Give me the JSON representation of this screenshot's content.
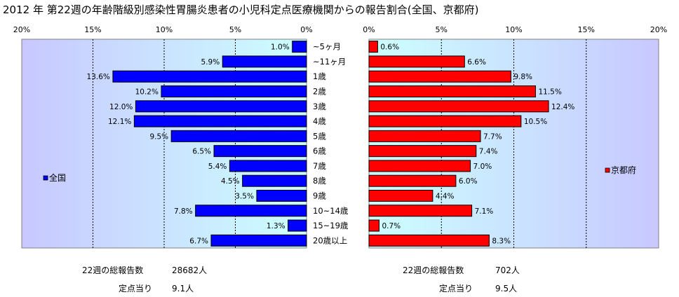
{
  "title": "2012 年 第22週の年齢階級別感染性胃腸炎患者の小児科定点医療機関からの報告割合(全国、京都府)",
  "chart_data": {
    "type": "bar",
    "orientation": "horizontal",
    "layout": "back-to-back",
    "categories": [
      "~5ヶ月",
      "~11ヶ月",
      "1歳",
      "2歳",
      "3歳",
      "4歳",
      "5歳",
      "6歳",
      "7歳",
      "8歳",
      "9歳",
      "10~14歳",
      "15~19歳",
      "20歳以上"
    ],
    "xlim": [
      0,
      20
    ],
    "ticks": [
      "20%",
      "15%",
      "10%",
      "5%",
      "0%",
      "0%",
      "5%",
      "10%",
      "15%",
      "20%"
    ],
    "grid": true,
    "series": [
      {
        "name": "全国",
        "side": "left",
        "color": "#0000ff",
        "values": [
          1.0,
          5.9,
          13.6,
          10.2,
          12.0,
          12.1,
          9.5,
          6.5,
          5.4,
          4.5,
          3.5,
          7.8,
          1.3,
          6.7
        ],
        "labels": [
          "1.0%",
          "5.9%",
          "13.6%",
          "10.2%",
          "12.0%",
          "12.1%",
          "9.5%",
          "6.5%",
          "5.4%",
          "4.5%",
          "3.5%",
          "7.8%",
          "1.3%",
          "6.7%"
        ]
      },
      {
        "name": "京都府",
        "side": "right",
        "color": "#ff0000",
        "values": [
          0.6,
          6.6,
          9.8,
          11.5,
          12.4,
          10.5,
          7.7,
          7.4,
          7.0,
          6.0,
          4.4,
          7.1,
          0.7,
          8.3
        ],
        "labels": [
          "0.6%",
          "6.6%",
          "9.8%",
          "11.5%",
          "12.4%",
          "10.5%",
          "7.7%",
          "7.4%",
          "7.0%",
          "6.0%",
          "4.4%",
          "7.1%",
          "0.7%",
          "8.3%"
        ]
      }
    ]
  },
  "stats": {
    "left": {
      "total_label": "22週の総報告数",
      "total_value": "28682人",
      "per_label": "定点当り",
      "per_value": "9.1人"
    },
    "right": {
      "total_label": "22週の総報告数",
      "total_value": "702人",
      "per_label": "定点当り",
      "per_value": "9.5人"
    }
  },
  "colors": {
    "plot_gradient_edge": "#c8c8ff",
    "plot_gradient_center": "#ccffff"
  }
}
